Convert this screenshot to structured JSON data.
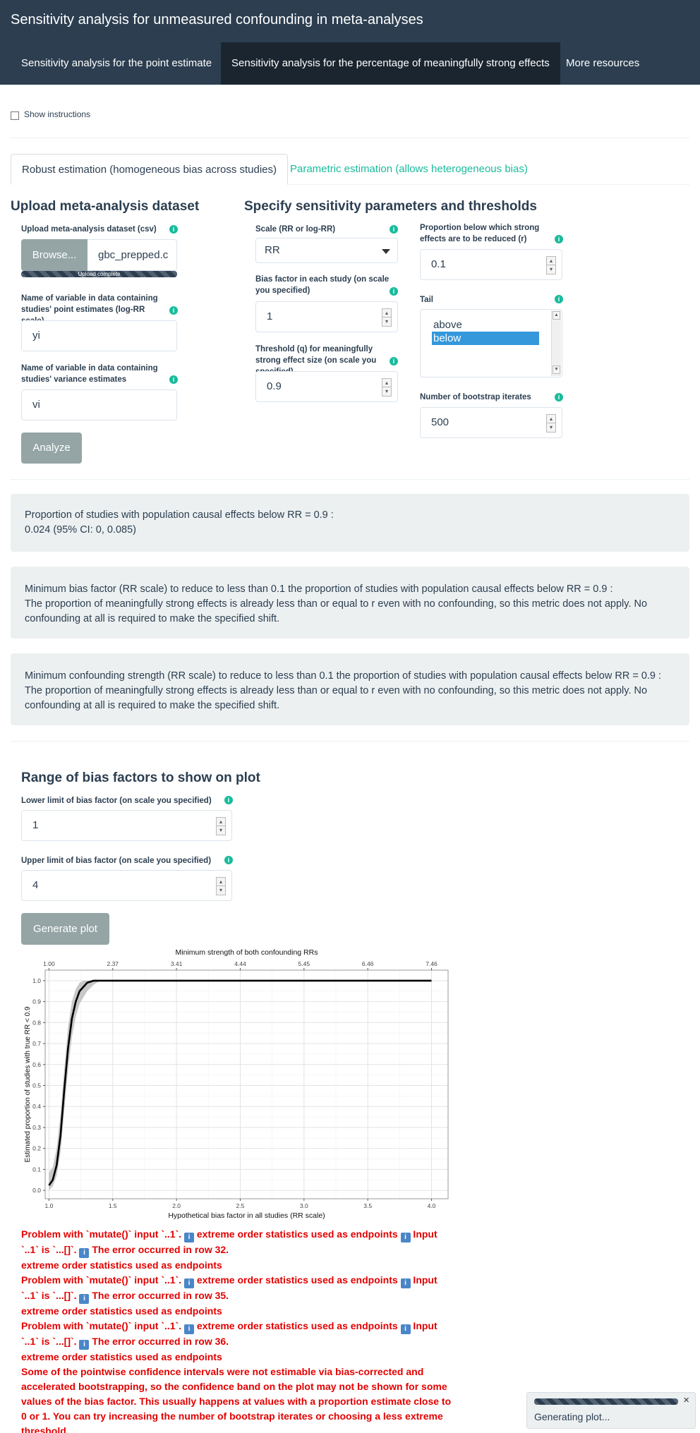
{
  "app": {
    "title": "Sensitivity analysis for unmeasured confounding in meta-analyses"
  },
  "nav": {
    "tabs": [
      "Sensitivity analysis for the point estimate",
      "Sensitivity analysis for the percentage of meaningfully strong effects",
      "More resources"
    ],
    "active_index": 1
  },
  "instructions": {
    "label": "Show instructions",
    "checked": false
  },
  "subtabs": [
    "Robust estimation (homogeneous bias across studies)",
    "Parametric estimation (allows heterogeneous bias)"
  ],
  "upload": {
    "heading": "Upload meta-analysis dataset",
    "file_label": "Upload meta-analysis dataset (csv)",
    "browse_label": "Browse...",
    "file_name": "gbc_prepped.c",
    "progress_text": "Upload complete",
    "progress_fraction": 1.0,
    "yi_label": "Name of variable in data containing studies' point estimates (log-RR scale)",
    "yi_value": "yi",
    "vi_label": "Name of variable in data containing studies' variance estimates",
    "vi_value": "vi",
    "analyze_label": "Analyze"
  },
  "params": {
    "heading": "Specify sensitivity parameters and thresholds",
    "scale_label": "Scale (RR or log-RR)",
    "scale_value": "RR",
    "bias_label": "Bias factor in each study (on scale you specified)",
    "bias_value": "1",
    "q_label": "Threshold (q) for meaningfully strong effect size (on scale you specified)",
    "q_value": "0.9",
    "r_label": "Proportion below which strong effects are to be reduced (r)",
    "r_value": "0.1",
    "tail_label": "Tail",
    "tail_options": [
      "above",
      "below"
    ],
    "tail_selected": "below",
    "boot_label": "Number of bootstrap iterates",
    "boot_value": "500"
  },
  "results": {
    "prop_heading": "Proportion of studies with population causal effects below RR = 0.9 :",
    "prop_value": "0.024 (95% CI: 0, 0.085)",
    "minbias_heading": "Minimum bias factor (RR scale) to reduce to less than 0.1 the proportion of studies with population causal effects below RR = 0.9 :",
    "minbias_text": "The proportion of meaningfully strong effects is already less than or equal to r even with no confounding, so this metric does not apply. No confounding at all is required to make the specified shift.",
    "minconf_heading": "Minimum confounding strength (RR scale) to reduce to less than 0.1 the proportion of studies with population causal effects below RR = 0.9 :",
    "minconf_text": "The proportion of meaningfully strong effects is already less than or equal to r even with no confounding, so this metric does not apply. No confounding at all is required to make the specified shift."
  },
  "range": {
    "heading": "Range of bias factors to show on plot",
    "lower_label": "Lower limit of bias factor (on scale you specified)",
    "lower_value": "1",
    "upper_label": "Upper limit of bias factor (on scale you specified)",
    "upper_value": "4",
    "button_label": "Generate plot"
  },
  "chart_data": {
    "type": "line",
    "title": "",
    "top_axis_title": "Minimum strength of both confounding RRs",
    "top_ticks": [
      "1.00",
      "2.37",
      "3.41",
      "4.44",
      "5.45",
      "6.46",
      "7.46"
    ],
    "xlabel": "Hypothetical bias factor in all studies (RR scale)",
    "ylabel": "Estimated proportion of studies with true RR < 0.9",
    "xlim": [
      0.97,
      4.13
    ],
    "ylim": [
      -0.04,
      1.05
    ],
    "x_ticks": [
      "1.0",
      "1.5",
      "2.0",
      "2.5",
      "3.0",
      "3.5",
      "4.0"
    ],
    "y_ticks": [
      "0.0",
      "0.1",
      "0.2",
      "0.3",
      "0.4",
      "0.5",
      "0.6",
      "0.7",
      "0.8",
      "0.9",
      "1.0"
    ],
    "grid": true,
    "series": [
      {
        "x": [
          1.0,
          1.03,
          1.06,
          1.09,
          1.12,
          1.15,
          1.18,
          1.21,
          1.24,
          1.27,
          1.3,
          1.35,
          1.4,
          1.5,
          2.0,
          3.0,
          4.0
        ],
        "y": [
          0.024,
          0.05,
          0.12,
          0.26,
          0.48,
          0.68,
          0.82,
          0.9,
          0.95,
          0.97,
          0.99,
          1.0,
          1.0,
          1.0,
          1.0,
          1.0,
          1.0
        ],
        "lower": [
          0.0,
          0.02,
          0.07,
          0.18,
          0.38,
          0.58,
          0.73,
          0.83,
          0.89,
          0.92,
          0.95,
          0.98,
          1.0,
          1.0,
          1.0,
          1.0,
          1.0
        ],
        "upper": [
          0.085,
          0.11,
          0.2,
          0.36,
          0.58,
          0.78,
          0.9,
          0.96,
          0.99,
          1.0,
          1.0,
          1.0,
          1.0,
          1.0,
          1.0,
          1.0,
          1.0
        ]
      }
    ]
  },
  "errors": [
    {
      "prefix": "Problem with `mutate()` input `..1`.",
      "mid": " extreme order statistics used as endpoints",
      "post": " Input `..1` is `...[]`.",
      "row": " The error occurred in row 32.",
      "tail": "extreme order statistics used as endpoints"
    },
    {
      "prefix": "Problem with `mutate()` input `..1`.",
      "mid": " extreme order statistics used as endpoints",
      "post": " Input `..1` is `...[]`.",
      "row": " The error occurred in row 35.",
      "tail": "extreme order statistics used as endpoints"
    },
    {
      "prefix": "Problem with `mutate()` input `..1`.",
      "mid": " extreme order statistics used as endpoints",
      "post": " Input `..1` is `...[]`.",
      "row": " The error occurred in row 36.",
      "tail": "extreme order statistics used as endpoints"
    }
  ],
  "warning": "Some of the pointwise confidence intervals were not estimable via bias-corrected and accelerated bootstrapping, so the confidence band on the plot may not be shown for some values of the bias factor. This usually happens at values with a proportion estimate close to 0 or 1. You can try increasing the number of bootstrap iterates or choosing a less extreme threshold.",
  "notification": {
    "text": "Generating plot...",
    "close": "×"
  },
  "colors": {
    "navbar": "#2c3e50",
    "navbar_active": "#1a252f",
    "accent": "#18bc9c",
    "well": "#ecf0f1",
    "error": "#e30000",
    "button": "#95a5a6"
  }
}
